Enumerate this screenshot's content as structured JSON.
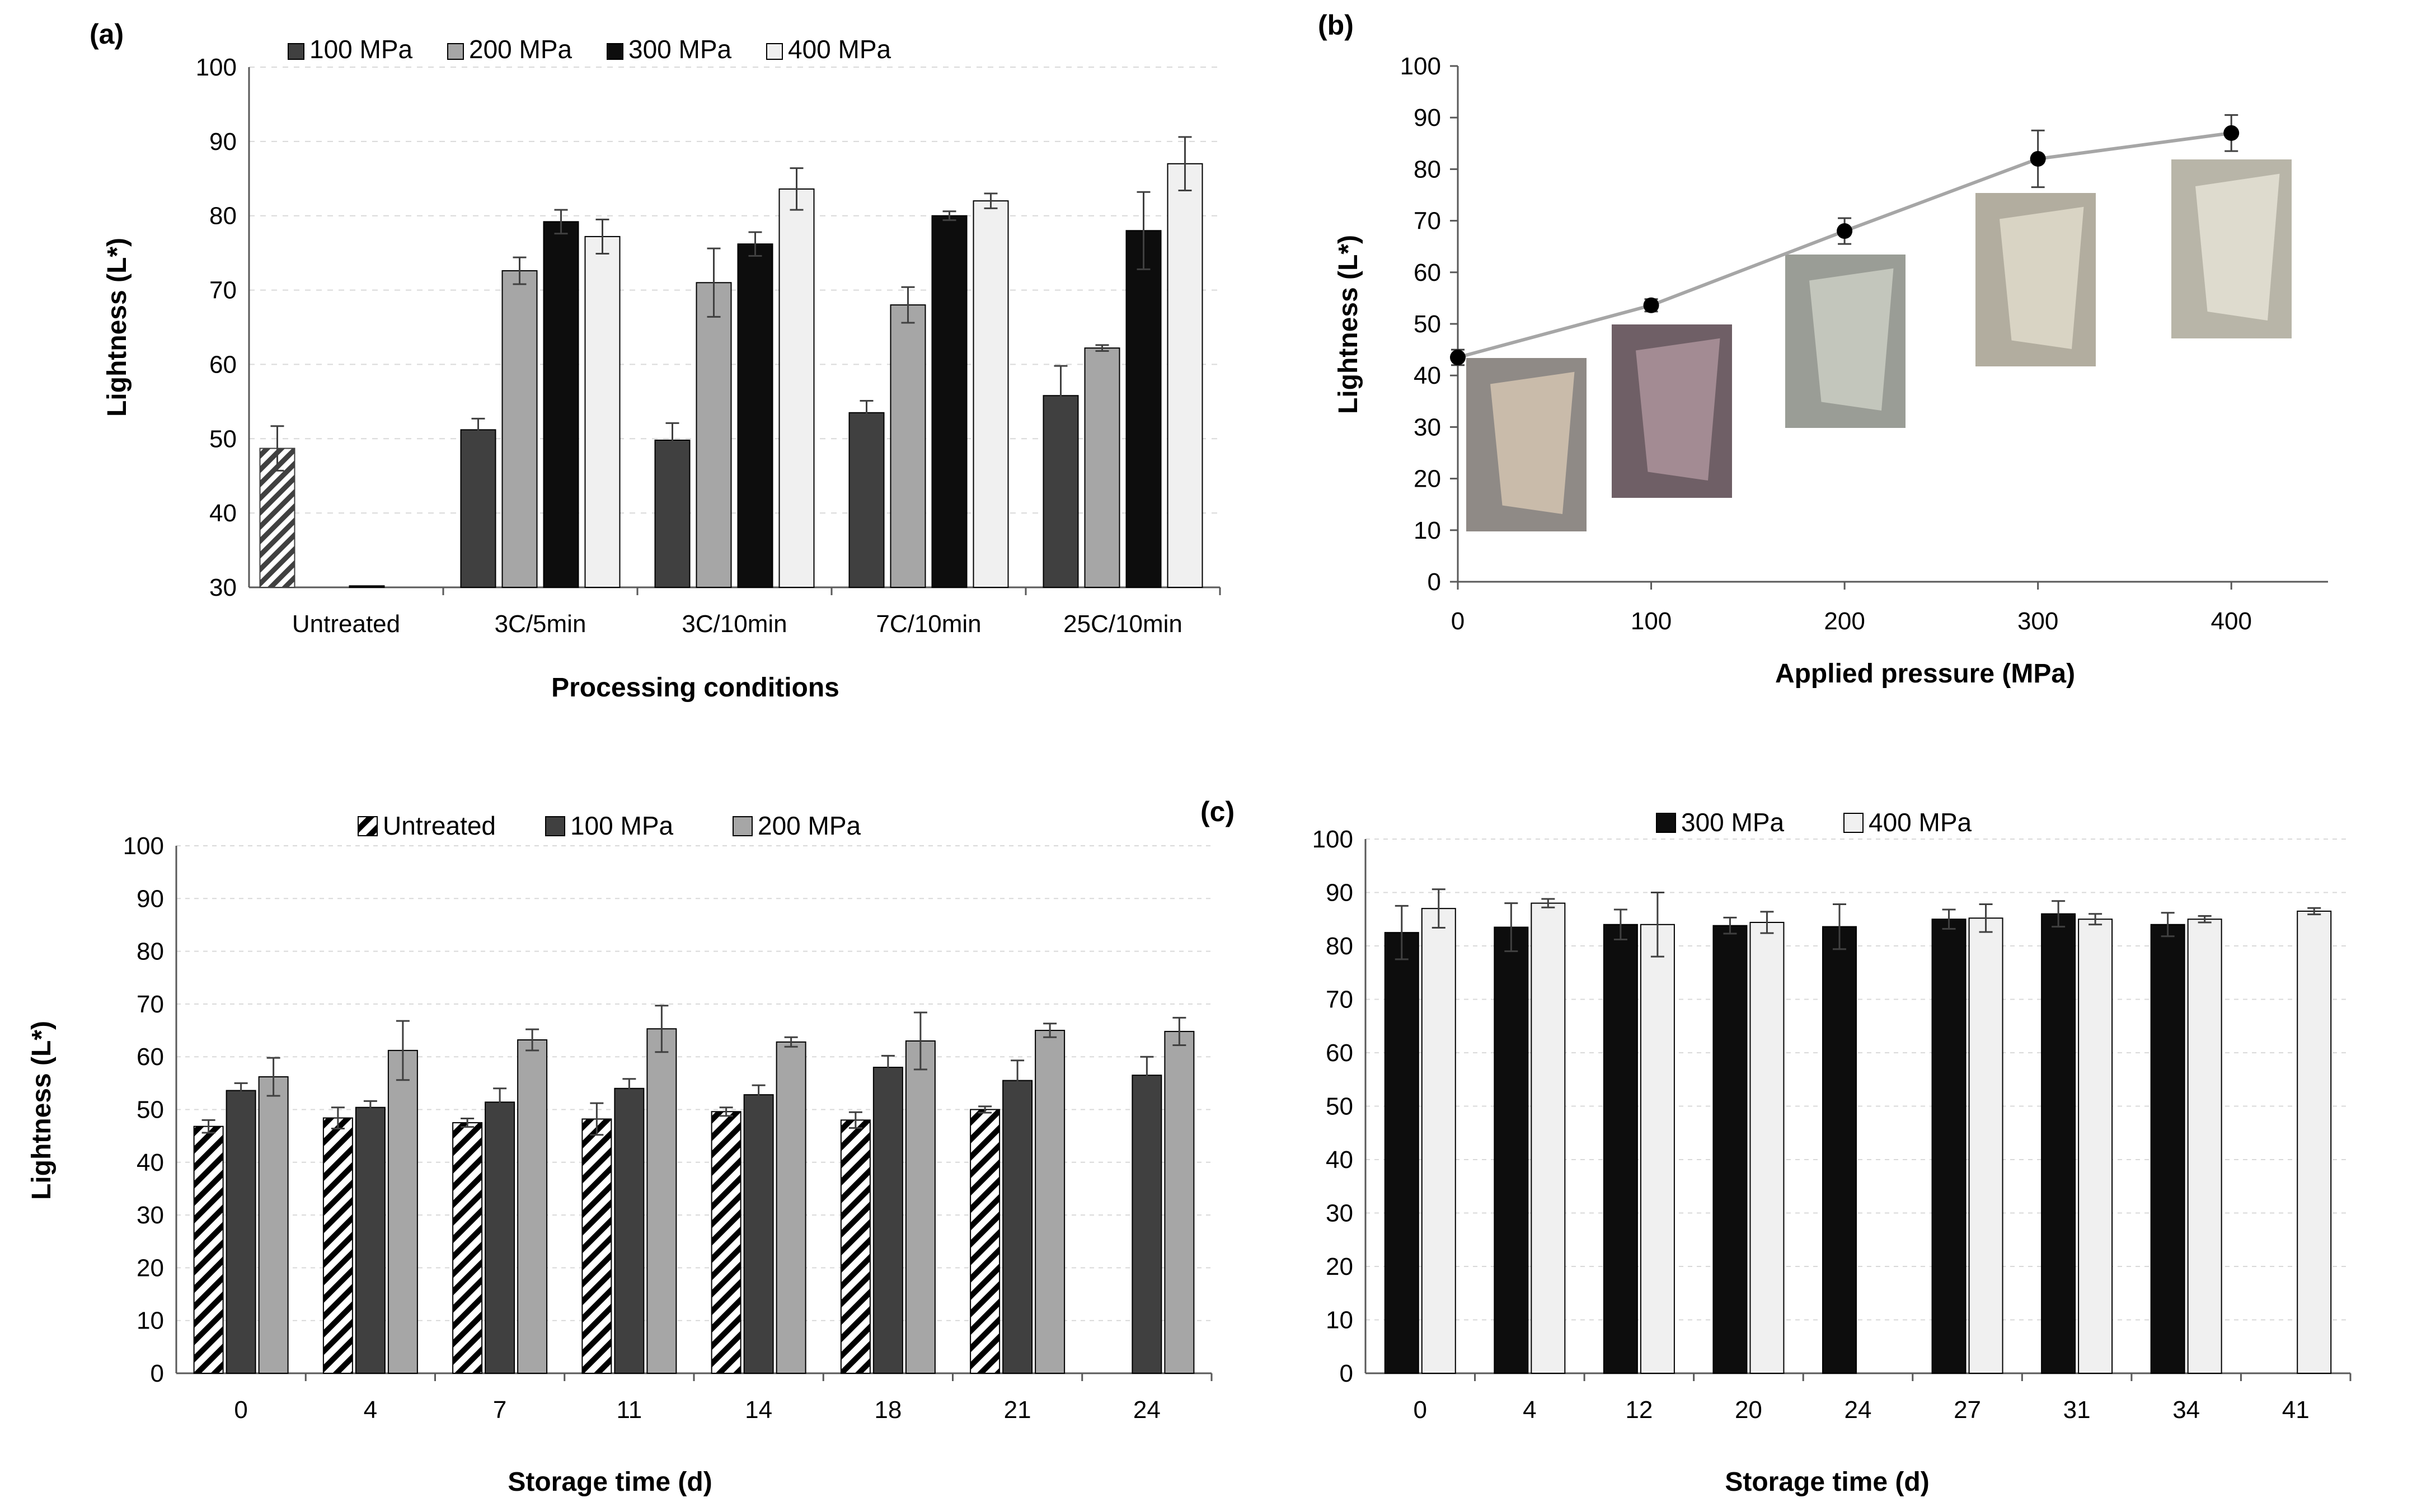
{
  "figure_labels": {
    "a": "(a)",
    "b": "(b)",
    "c": "(c)"
  },
  "colors": {
    "100 MPa": "#404040",
    "200 MPa": "#a6a6a6",
    "300 MPa": "#0d0d0d",
    "400 MPa": "#f0f0f0",
    "line": "#a6a6a6",
    "grid": "#d9d9d9"
  },
  "photos": [
    {
      "label": "fillet-0MPa",
      "colors": [
        "#8f8a86",
        "#cfc0ae"
      ]
    },
    {
      "label": "fillet-100MPa",
      "colors": [
        "#6f5f66",
        "#a89098"
      ]
    },
    {
      "label": "fillet-200MPa",
      "colors": [
        "#9a9d96",
        "#c8cbc0"
      ]
    },
    {
      "label": "fillet-300MPa",
      "colors": [
        "#b2ad9f",
        "#ddd8c8"
      ]
    },
    {
      "label": "fillet-400MPa",
      "colors": [
        "#b8b5a8",
        "#e2dfd2"
      ]
    }
  ],
  "chart_data": [
    {
      "id": "a",
      "type": "bar",
      "title": "",
      "xlabel": "Processing conditions",
      "ylabel": "Lightness (L*)",
      "ylim": [
        30,
        100
      ],
      "yticks": [
        30,
        40,
        50,
        60,
        70,
        80,
        90,
        100
      ],
      "legend_position": "top",
      "categories": [
        "Untreated",
        "3C/5min",
        "3C/10min",
        "7C/10min",
        "25C/10min"
      ],
      "series": [
        {
          "name": "100 MPa",
          "values": [
            null,
            51.2,
            49.8,
            53.5,
            55.8
          ],
          "errors": [
            null,
            1.5,
            2.3,
            1.6,
            4.0
          ]
        },
        {
          "name": "200 MPa",
          "values": [
            null,
            72.6,
            71.0,
            68.0,
            62.2
          ],
          "errors": [
            null,
            1.8,
            4.6,
            2.4,
            0.4
          ]
        },
        {
          "name": "300 MPa",
          "values": [
            30.2,
            79.2,
            76.2,
            80.0,
            78.0
          ],
          "errors": [
            null,
            1.6,
            1.6,
            0.6,
            5.2
          ]
        },
        {
          "name": "400 MPa",
          "values": [
            null,
            77.2,
            83.6,
            82.0,
            87.0
          ],
          "errors": [
            null,
            2.3,
            2.8,
            1.0,
            3.6
          ]
        }
      ],
      "untreated": {
        "value": 48.7,
        "error": 3.0,
        "pattern": "hatched"
      }
    },
    {
      "id": "b",
      "type": "line",
      "title": "",
      "xlabel": "Applied pressure (MPa)",
      "ylabel": "Lightness (L*)",
      "xlim": [
        0,
        450
      ],
      "ylim": [
        0,
        100
      ],
      "xticks": [
        0,
        100,
        200,
        300,
        400
      ],
      "yticks": [
        0,
        10,
        20,
        30,
        40,
        50,
        60,
        70,
        80,
        90,
        100
      ],
      "x": [
        0,
        100,
        200,
        300,
        400
      ],
      "y": [
        43.5,
        53.6,
        68.0,
        82.0,
        87.0
      ],
      "errors": [
        1.5,
        1.2,
        2.5,
        5.5,
        3.5
      ]
    },
    {
      "id": "c-left",
      "type": "bar",
      "title": "",
      "xlabel": "Storage time (d)",
      "ylabel": "Lightness (L*)",
      "ylim": [
        0,
        100
      ],
      "yticks": [
        0,
        10,
        20,
        30,
        40,
        50,
        60,
        70,
        80,
        90,
        100
      ],
      "legend_position": "top",
      "categories": [
        "0",
        "4",
        "7",
        "11",
        "14",
        "18",
        "21",
        "24"
      ],
      "series": [
        {
          "name": "Untreated",
          "values": [
            46.8,
            48.4,
            47.5,
            48.2,
            49.6,
            48.0,
            50.0,
            null
          ],
          "errors": [
            1.2,
            2.0,
            0.8,
            3.0,
            0.8,
            1.5,
            0.6,
            null
          ],
          "pattern": "hatched"
        },
        {
          "name": "100 MPa",
          "values": [
            53.6,
            50.4,
            51.4,
            54.0,
            52.8,
            58.0,
            55.5,
            56.5
          ],
          "errors": [
            1.4,
            1.2,
            2.6,
            1.8,
            1.8,
            2.2,
            3.8,
            3.5
          ]
        },
        {
          "name": "200 MPa",
          "values": [
            56.2,
            61.2,
            63.2,
            65.3,
            62.8,
            63.0,
            65.0,
            64.8
          ],
          "errors": [
            3.6,
            5.6,
            2.0,
            4.4,
            0.9,
            5.4,
            1.3,
            2.6
          ]
        }
      ]
    },
    {
      "id": "c-right",
      "type": "bar",
      "title": "",
      "xlabel": "Storage time (d)",
      "ylabel": "",
      "ylim": [
        0,
        100
      ],
      "yticks": [
        0,
        10,
        20,
        30,
        40,
        50,
        60,
        70,
        80,
        90,
        100
      ],
      "legend_position": "top",
      "categories": [
        "0",
        "4",
        "12",
        "20",
        "24",
        "27",
        "31",
        "34",
        "41"
      ],
      "series": [
        {
          "name": "300 MPa",
          "values": [
            82.5,
            83.5,
            84.0,
            83.8,
            83.6,
            85.0,
            86.0,
            84.0,
            null
          ],
          "errors": [
            5.0,
            4.5,
            2.8,
            1.5,
            4.2,
            1.8,
            2.4,
            2.2,
            null
          ]
        },
        {
          "name": "400 MPa",
          "values": [
            87.0,
            88.0,
            84.0,
            84.4,
            null,
            85.2,
            85.0,
            85.0,
            86.5
          ],
          "errors": [
            3.6,
            0.8,
            6.0,
            2.0,
            null,
            2.6,
            1.0,
            0.6,
            0.6
          ]
        }
      ]
    }
  ]
}
